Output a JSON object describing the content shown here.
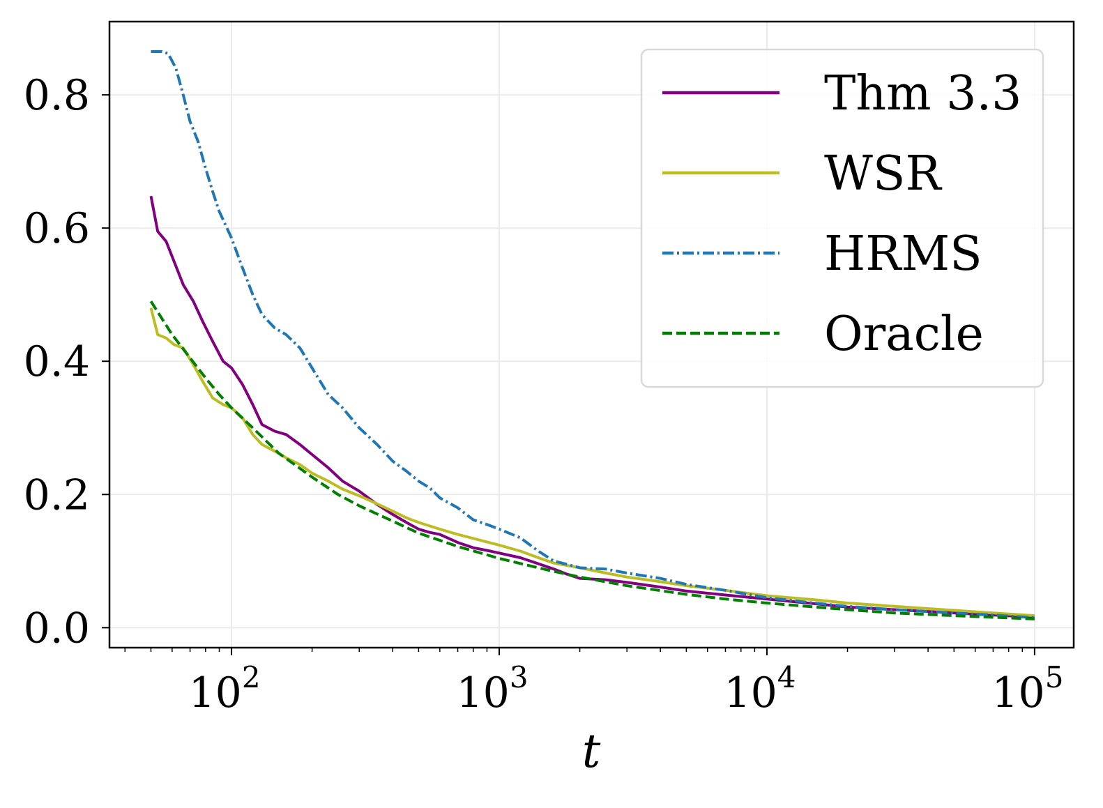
{
  "chart_data": {
    "type": "line",
    "title": "",
    "xlabel": "t",
    "ylabel": "",
    "xscale": "log",
    "xlim": [
      35,
      140000
    ],
    "ylim": [
      -0.03,
      0.91
    ],
    "grid": true,
    "legend_position": "top-right",
    "yticks": [
      {
        "value": 0.0,
        "label": "0.0"
      },
      {
        "value": 0.2,
        "label": "0.2"
      },
      {
        "value": 0.4,
        "label": "0.4"
      },
      {
        "value": 0.6,
        "label": "0.6"
      },
      {
        "value": 0.8,
        "label": "0.8"
      }
    ],
    "xticks": [
      {
        "value": 100,
        "base": "10",
        "exp": "2"
      },
      {
        "value": 1000,
        "base": "10",
        "exp": "3"
      },
      {
        "value": 10000,
        "base": "10",
        "exp": "4"
      },
      {
        "value": 100000,
        "base": "10",
        "exp": "5"
      }
    ],
    "series": [
      {
        "name": "Thm 3.3",
        "color": "#800080",
        "dash": "solid",
        "x": [
          50,
          53,
          57,
          61,
          66,
          72,
          78,
          85,
          93,
          100,
          110,
          120,
          130,
          145,
          160,
          180,
          200,
          230,
          260,
          300,
          350,
          400,
          450,
          500,
          550,
          600,
          700,
          800,
          900,
          1000,
          1200,
          1400,
          1600,
          1800,
          2000,
          2500,
          3000,
          4000,
          5000,
          7000,
          10000,
          15000,
          20000,
          30000,
          50000,
          70000,
          100000
        ],
        "y": [
          0.648,
          0.595,
          0.58,
          0.55,
          0.515,
          0.49,
          0.46,
          0.43,
          0.4,
          0.39,
          0.365,
          0.335,
          0.305,
          0.295,
          0.29,
          0.275,
          0.26,
          0.24,
          0.22,
          0.205,
          0.185,
          0.17,
          0.158,
          0.148,
          0.143,
          0.14,
          0.128,
          0.12,
          0.116,
          0.112,
          0.105,
          0.096,
          0.088,
          0.08,
          0.074,
          0.072,
          0.068,
          0.061,
          0.055,
          0.049,
          0.043,
          0.036,
          0.031,
          0.027,
          0.022,
          0.019,
          0.016
        ]
      },
      {
        "name": "WSR",
        "color": "#bcbd22",
        "dash": "solid",
        "x": [
          50,
          53,
          57,
          61,
          66,
          72,
          78,
          85,
          93,
          100,
          110,
          120,
          130,
          145,
          160,
          180,
          200,
          230,
          260,
          300,
          350,
          400,
          450,
          500,
          600,
          700,
          800,
          1000,
          1200,
          1400,
          1600,
          2000,
          2500,
          3000,
          4000,
          5000,
          7000,
          10000,
          15000,
          20000,
          30000,
          50000,
          70000,
          100000
        ],
        "y": [
          0.48,
          0.44,
          0.435,
          0.425,
          0.42,
          0.395,
          0.37,
          0.345,
          0.335,
          0.33,
          0.315,
          0.29,
          0.275,
          0.265,
          0.255,
          0.245,
          0.232,
          0.22,
          0.208,
          0.198,
          0.186,
          0.175,
          0.165,
          0.158,
          0.148,
          0.14,
          0.134,
          0.124,
          0.115,
          0.105,
          0.097,
          0.09,
          0.082,
          0.076,
          0.069,
          0.063,
          0.056,
          0.048,
          0.042,
          0.037,
          0.032,
          0.026,
          0.022,
          0.018
        ]
      },
      {
        "name": "HRMS",
        "color": "#1f77b4",
        "dash": "dashdot",
        "x": [
          50,
          55,
          58,
          62,
          66,
          70,
          75,
          80,
          85,
          90,
          100,
          110,
          120,
          130,
          145,
          160,
          180,
          200,
          230,
          260,
          300,
          350,
          400,
          450,
          500,
          550,
          600,
          700,
          800,
          900,
          1000,
          1200,
          1400,
          1600,
          1800,
          2000,
          2500,
          3000,
          4000,
          5000,
          7000,
          10000,
          15000,
          20000,
          30000,
          50000,
          70000,
          100000
        ],
        "y": [
          0.865,
          0.865,
          0.862,
          0.84,
          0.8,
          0.76,
          0.73,
          0.69,
          0.655,
          0.625,
          0.585,
          0.54,
          0.5,
          0.47,
          0.45,
          0.44,
          0.42,
          0.39,
          0.35,
          0.33,
          0.3,
          0.275,
          0.25,
          0.235,
          0.22,
          0.21,
          0.195,
          0.18,
          0.162,
          0.155,
          0.148,
          0.135,
          0.115,
          0.1,
          0.095,
          0.09,
          0.088,
          0.082,
          0.074,
          0.065,
          0.056,
          0.045,
          0.037,
          0.032,
          0.027,
          0.022,
          0.019,
          0.015
        ]
      },
      {
        "name": "Oracle",
        "color": "#007f00",
        "dash": "dashed",
        "x": [
          50,
          60,
          70,
          80,
          90,
          100,
          120,
          150,
          200,
          250,
          300,
          400,
          500,
          700,
          1000,
          1500,
          2000,
          3000,
          5000,
          7000,
          10000,
          20000,
          30000,
          50000,
          100000
        ],
        "y": [
          0.49,
          0.44,
          0.405,
          0.375,
          0.35,
          0.33,
          0.3,
          0.262,
          0.226,
          0.2,
          0.183,
          0.16,
          0.142,
          0.122,
          0.104,
          0.087,
          0.076,
          0.063,
          0.05,
          0.043,
          0.037,
          0.027,
          0.022,
          0.018,
          0.013
        ]
      }
    ]
  }
}
